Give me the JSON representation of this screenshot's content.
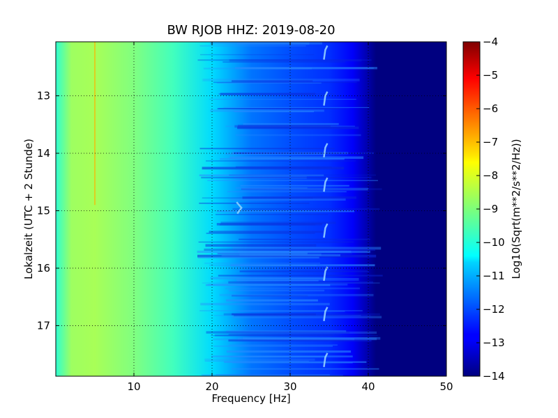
{
  "chart_data": {
    "type": "heatmap",
    "title": "BW RJOB HHZ: 2019-08-20",
    "xlabel": "Frequency [Hz]",
    "ylabel": "Lokalzeit (UTC + 2 Stunde)",
    "xlim": [
      0,
      50
    ],
    "ylim": [
      12.06,
      17.88
    ],
    "x_ticks": [
      10,
      20,
      30,
      40,
      50
    ],
    "y_ticks": [
      13,
      14,
      15,
      16,
      17
    ],
    "y_inverted": true,
    "grid": true,
    "colorbar": {
      "label": "Log10(Sqrt(m**2/s**2/Hz))",
      "range": [
        -14,
        -4
      ],
      "ticks": [
        -4,
        -5,
        -6,
        -7,
        -8,
        -9,
        -10,
        -11,
        -12,
        -13,
        -14
      ],
      "colormap": "jet"
    },
    "value_profile": {
      "frequency_hz": [
        0,
        2,
        5,
        10,
        15,
        20,
        25,
        30,
        35,
        38,
        40,
        41,
        50
      ],
      "log10_amplitude": [
        -9.8,
        -8.7,
        -8.6,
        -9.0,
        -9.6,
        -10.6,
        -11.6,
        -12.0,
        -12.3,
        -12.8,
        -13.6,
        -14.0,
        -14.0
      ]
    },
    "narrowband_line_hz": 5,
    "signal_features_hz": [
      23.5,
      34.5
    ]
  }
}
